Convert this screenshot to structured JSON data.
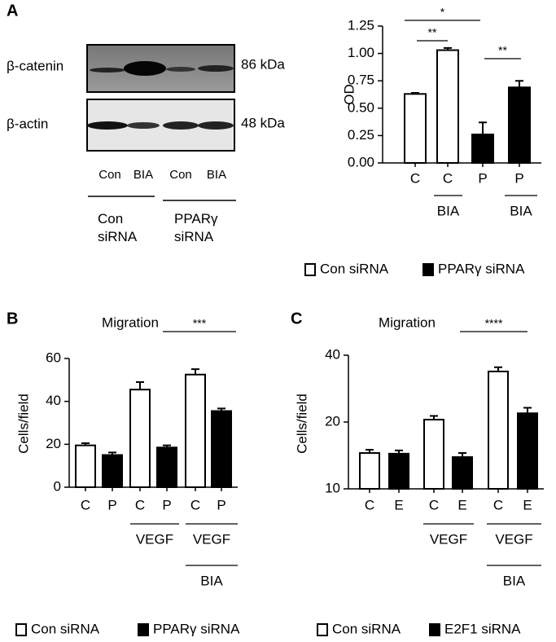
{
  "panel_labels": [
    "A",
    "B",
    "C"
  ],
  "blot": {
    "proteins": [
      "β-catenin",
      "β-actin"
    ],
    "sizes": [
      "86 kDa",
      "48 kDa"
    ],
    "lanes": [
      "Con",
      "BIA",
      "Con",
      "BIA"
    ],
    "groups": [
      "Con siRNA",
      "PPARγ siRNA"
    ]
  },
  "chart_data": [
    {
      "type": "bar",
      "ylabel": "OD",
      "categories": [
        "C",
        "C",
        "P",
        "P"
      ],
      "group_labels": [
        "BIA",
        "BIA"
      ],
      "annotations": [
        "*",
        "**",
        "**"
      ],
      "ylim": [
        0,
        1.25
      ],
      "yticks": [
        {
          "value": 0,
          "label": "0.00"
        },
        {
          "value": 0.25,
          "label": "0.25"
        },
        {
          "value": 0.5,
          "label": "0.50"
        },
        {
          "value": 0.75,
          "label": "0.75"
        },
        {
          "value": 1,
          "label": "1.00"
        },
        {
          "value": 1.25,
          "label": "1.25"
        }
      ],
      "series": [
        {
          "name": "Con siRNA",
          "color": "#ffffff",
          "values": [
            0.63,
            1.03,
            null,
            null
          ],
          "errors": [
            0.01,
            0.02,
            null,
            null
          ]
        },
        {
          "name": "PPARγ siRNA",
          "color": "#000000",
          "values": [
            null,
            null,
            0.26,
            0.69
          ],
          "errors": [
            null,
            null,
            0.11,
            0.06
          ]
        }
      ]
    },
    {
      "type": "bar",
      "title": "Migration",
      "ylabel": "Cells/field",
      "categories": [
        "C",
        "P",
        "C",
        "P",
        "C",
        "P"
      ],
      "group_labels": [
        "VEGF",
        "VEGF",
        "BIA"
      ],
      "annotations": [
        "***"
      ],
      "ylim": [
        0,
        60
      ],
      "yticks": [
        0,
        20,
        40,
        60
      ],
      "series": [
        {
          "name": "Con siRNA",
          "color": "#ffffff",
          "values": [
            19.5,
            null,
            45.5,
            null,
            52.5,
            null
          ],
          "errors": [
            1,
            null,
            3.5,
            null,
            2.5,
            null
          ]
        },
        {
          "name": "PPARγ siRNA",
          "color": "#000000",
          "values": [
            null,
            15,
            null,
            18.5,
            null,
            35.5
          ],
          "errors": [
            null,
            1.2,
            null,
            1,
            null,
            1.2
          ]
        }
      ]
    },
    {
      "type": "bar",
      "title": "Migration",
      "ylabel": "Cells/field",
      "categories": [
        "C",
        "E",
        "C",
        "E",
        "C",
        "E"
      ],
      "group_labels": [
        "VEGF",
        "VEGF",
        "BIA"
      ],
      "annotations": [
        "****"
      ],
      "ylim": [
        10,
        40
      ],
      "yticks": [
        10,
        20,
        40
      ],
      "log_scale": true,
      "series": [
        {
          "name": "Con siRNA",
          "color": "#ffffff",
          "values": [
            14.5,
            null,
            20.5,
            null,
            33.8,
            null
          ],
          "errors": [
            0.5,
            null,
            0.8,
            null,
            1.5,
            null
          ]
        },
        {
          "name": "E2F1 siRNA",
          "color": "#000000",
          "values": [
            null,
            14.4,
            null,
            13.9,
            null,
            21.9
          ],
          "errors": [
            null,
            0.5,
            null,
            0.6,
            null,
            1.3
          ]
        }
      ]
    }
  ]
}
